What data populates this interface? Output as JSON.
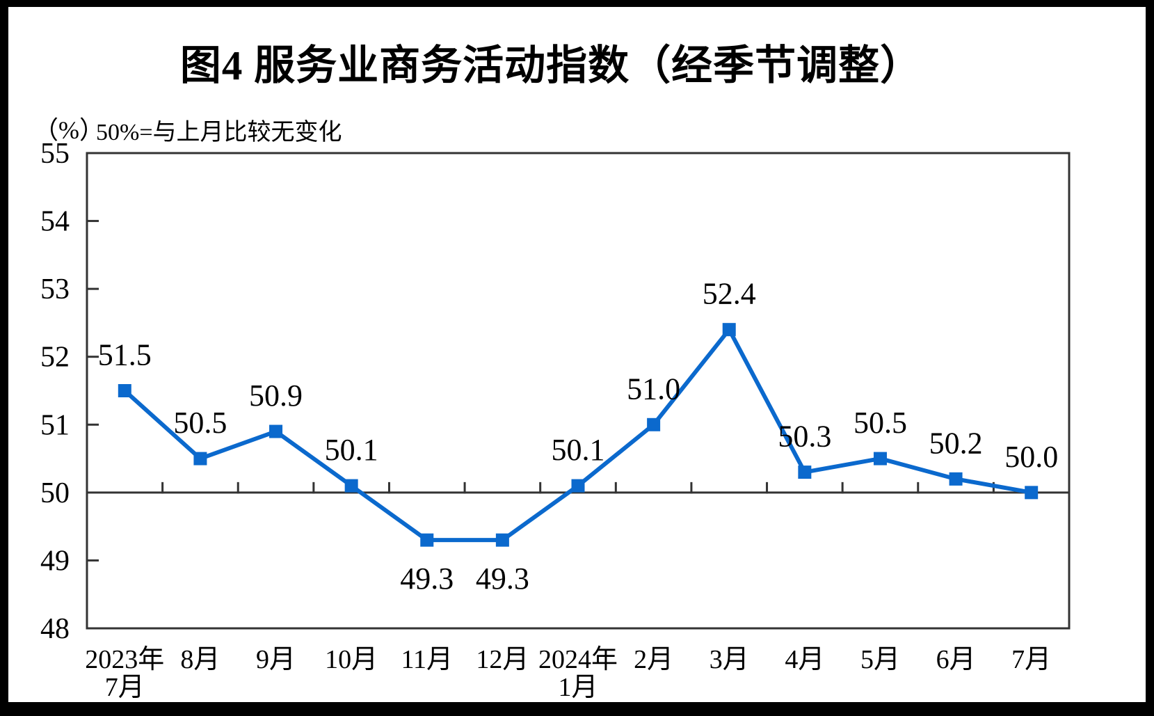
{
  "title": "图4  服务业商务活动指数（经季节调整）",
  "subtitle": {
    "unit": "（%）",
    "note": "50%=与上月比较无变化"
  },
  "chart_data": {
    "type": "line",
    "title": "图4 服务业商务活动指数（经季节调整）",
    "unit": "%",
    "note": "50%=与上月比较无变化",
    "categories": [
      [
        "2023年",
        "7月"
      ],
      [
        "8月"
      ],
      [
        "9月"
      ],
      [
        "10月"
      ],
      [
        "11月"
      ],
      [
        "12月"
      ],
      [
        "2024年",
        "1月"
      ],
      [
        "2月"
      ],
      [
        "3月"
      ],
      [
        "4月"
      ],
      [
        "5月"
      ],
      [
        "6月"
      ],
      [
        "7月"
      ]
    ],
    "series": [
      {
        "name": "服务业商务活动指数",
        "values": [
          51.5,
          50.5,
          50.9,
          50.1,
          49.3,
          49.3,
          50.1,
          51.0,
          52.4,
          50.3,
          50.5,
          50.2,
          50.0
        ],
        "data_labels": [
          "51.5",
          "50.5",
          "50.9",
          "50.1",
          "49.3",
          "49.3",
          "50.1",
          "51.0",
          "52.4",
          "50.3",
          "50.5",
          "50.2",
          "50.0"
        ],
        "label_positions": [
          "above",
          "above",
          "above",
          "above",
          "below",
          "below",
          "above",
          "above",
          "above",
          "above",
          "above",
          "above",
          "above"
        ]
      }
    ],
    "ylim": [
      48,
      55
    ],
    "yticks": [
      48,
      49,
      50,
      51,
      52,
      53,
      54,
      55
    ],
    "reference_line": 50,
    "grid": false,
    "legend": "none",
    "marker": "square",
    "colors": {
      "line": "#0b69cd",
      "axis": "#333333",
      "text": "#000000",
      "background": "#ffffff",
      "page_border": "#000000"
    }
  }
}
